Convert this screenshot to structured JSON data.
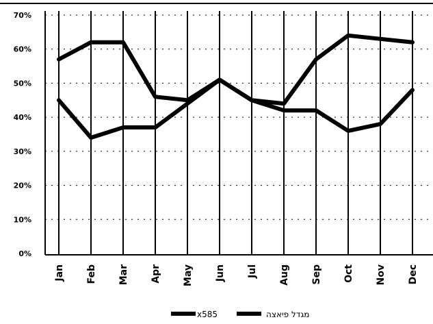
{
  "chart_data": {
    "type": "line",
    "categories": [
      "Jan",
      "Feb",
      "Mar",
      "Apr",
      "May",
      "Jun",
      "Jul",
      "Aug",
      "Sep",
      "Oct",
      "Nov",
      "Dec"
    ],
    "y_ticks": [
      "0%",
      "10%",
      "20%",
      "30%",
      "40%",
      "50%",
      "60%",
      "70%"
    ],
    "ylim": [
      0,
      70
    ],
    "grid": true,
    "legend_position": "bottom",
    "series": [
      {
        "name": "x585",
        "values": [
          45,
          34,
          37,
          37,
          44,
          51,
          45,
          42,
          42,
          36,
          38,
          48
        ]
      },
      {
        "name": "מגדל פיאצה",
        "values": [
          57,
          62,
          62,
          46,
          45,
          51,
          45,
          44,
          57,
          64,
          63,
          62
        ]
      }
    ],
    "colors": {
      "line": "#000000",
      "grid": "#000000"
    }
  }
}
